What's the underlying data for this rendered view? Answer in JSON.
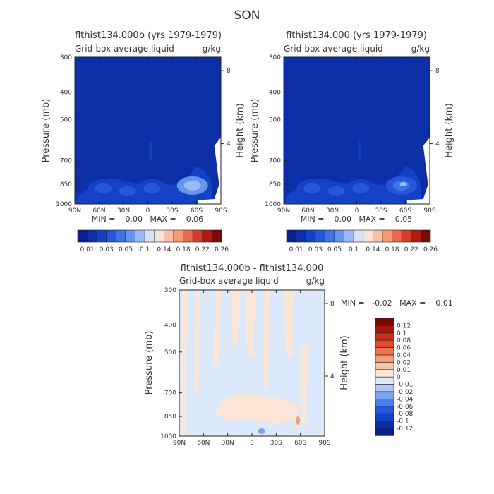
{
  "page_title": "SON",
  "colors": {
    "abs_scale": [
      "#08208c",
      "#0c2fa8",
      "#1541c4",
      "#2557da",
      "#3f74e6",
      "#6695ee",
      "#9bbaf3",
      "#d4e3f8",
      "#fbe3d5",
      "#f7c1a7",
      "#f29c7e",
      "#e86b50",
      "#d53c2a",
      "#b21a12",
      "#7a0a04"
    ],
    "diff_scale": [
      "#08208c",
      "#0c2fa8",
      "#1541c4",
      "#2557da",
      "#4d7fea",
      "#7ea4f0",
      "#aec7f5",
      "#dce9fa",
      "#fde6d6",
      "#f9c4a8",
      "#f49b7a",
      "#ee7453",
      "#e64a2e",
      "#cc2a14",
      "#a5170b",
      "#7a0a04"
    ]
  },
  "chart_data": [
    {
      "type": "heatmap",
      "title": "flthist134.000b (yrs 1979-1979)",
      "subtitle_left": "Grid-box average liquid",
      "subtitle_right": "g/kg",
      "ylabel": "Pressure (mb)",
      "ylabel_right": "Height (km)",
      "xlim": [
        90,
        -90
      ],
      "ylim": [
        300,
        1000
      ],
      "x_ticks": [
        90,
        60,
        30,
        0,
        -30,
        -60,
        -90
      ],
      "x_tick_labels": [
        "90N",
        "60N",
        "30N",
        "0",
        "30S",
        "60S",
        "90S"
      ],
      "y_ticks": [
        300,
        400,
        500,
        700,
        850,
        1000
      ],
      "y_tick_labels": [
        "300",
        "400",
        "500",
        "700",
        "850",
        "1000"
      ],
      "right_ticks": [
        {
          "p": 335,
          "label": "8"
        },
        {
          "p": 610,
          "label": "4"
        }
      ],
      "stats": "MIN =    0.00   MAX =    0.06",
      "colorbar": {
        "levels": [
          "0.01",
          "0.03",
          "0.05",
          "0.1",
          "0.14",
          "0.18",
          "0.22",
          "0.26"
        ],
        "boundaries": [
          0.01,
          0.02,
          0.03,
          0.04,
          0.05,
          0.06,
          0.1,
          0.12,
          0.14,
          0.16,
          0.18,
          0.2,
          0.22,
          0.24,
          0.26
        ]
      },
      "features": [
        {
          "lat": 55,
          "p": 880,
          "value": 0.02
        },
        {
          "lat": 25,
          "p": 900,
          "value": 0.015
        },
        {
          "lat": -5,
          "p": 880,
          "value": 0.02
        },
        {
          "lat": -55,
          "p": 860,
          "value": 0.05
        }
      ]
    },
    {
      "type": "heatmap",
      "title": "flthist134.000 (yrs 1979-1979)",
      "subtitle_left": "Grid-box average liquid",
      "subtitle_right": "g/kg",
      "ylabel": "Pressure (mb)",
      "ylabel_right": "Height (km)",
      "xlim": [
        90,
        -90
      ],
      "ylim": [
        300,
        1000
      ],
      "x_ticks": [
        90,
        60,
        30,
        0,
        -30,
        -60,
        -90
      ],
      "x_tick_labels": [
        "90N",
        "60N",
        "30N",
        "0",
        "30S",
        "60S",
        "90S"
      ],
      "y_ticks": [
        300,
        400,
        500,
        700,
        850,
        1000
      ],
      "y_tick_labels": [
        "300",
        "400",
        "500",
        "700",
        "850",
        "1000"
      ],
      "right_ticks": [
        {
          "p": 335,
          "label": "8"
        },
        {
          "p": 610,
          "label": "4"
        }
      ],
      "stats": "MIN =    0.00   MAX =    0.05",
      "colorbar": {
        "levels": [
          "0.01",
          "0.03",
          "0.05",
          "0.1",
          "0.14",
          "0.18",
          "0.22",
          "0.26"
        ],
        "boundaries": [
          0.01,
          0.02,
          0.03,
          0.04,
          0.05,
          0.06,
          0.1,
          0.12,
          0.14,
          0.16,
          0.18,
          0.2,
          0.22,
          0.24,
          0.26
        ]
      },
      "features": [
        {
          "lat": 55,
          "p": 880,
          "value": 0.02
        },
        {
          "lat": 25,
          "p": 900,
          "value": 0.015
        },
        {
          "lat": -5,
          "p": 880,
          "value": 0.02
        },
        {
          "lat": -55,
          "p": 860,
          "value": 0.045
        }
      ]
    },
    {
      "type": "heatmap",
      "title": "flthist134.000b - flthist134.000",
      "subtitle_left": "Grid-box average liquid",
      "subtitle_right": "g/kg",
      "ylabel": "Pressure (mb)",
      "ylabel_right": "Height (km)",
      "xlim": [
        90,
        -90
      ],
      "ylim": [
        300,
        1000
      ],
      "x_ticks": [
        90,
        60,
        30,
        0,
        -30,
        -60,
        -90
      ],
      "x_tick_labels": [
        "90N",
        "60N",
        "30N",
        "0",
        "30S",
        "60S",
        "90S"
      ],
      "y_ticks": [
        300,
        400,
        500,
        700,
        850,
        1000
      ],
      "y_tick_labels": [
        "300",
        "400",
        "500",
        "700",
        "850",
        "1000"
      ],
      "right_ticks": [
        {
          "p": 335,
          "label": "8"
        },
        {
          "p": 610,
          "label": "4"
        }
      ],
      "stats": "MIN =   -0.02   MAX =    0.01",
      "colorbar": {
        "levels": [
          "0.12",
          "0.1",
          "0.08",
          "0.06",
          "0.04",
          "0.02",
          "0.01",
          "0",
          "-0.01",
          "-0.02",
          "-0.04",
          "-0.06",
          "-0.08",
          "-0.1",
          "-0.12"
        ]
      }
    }
  ]
}
